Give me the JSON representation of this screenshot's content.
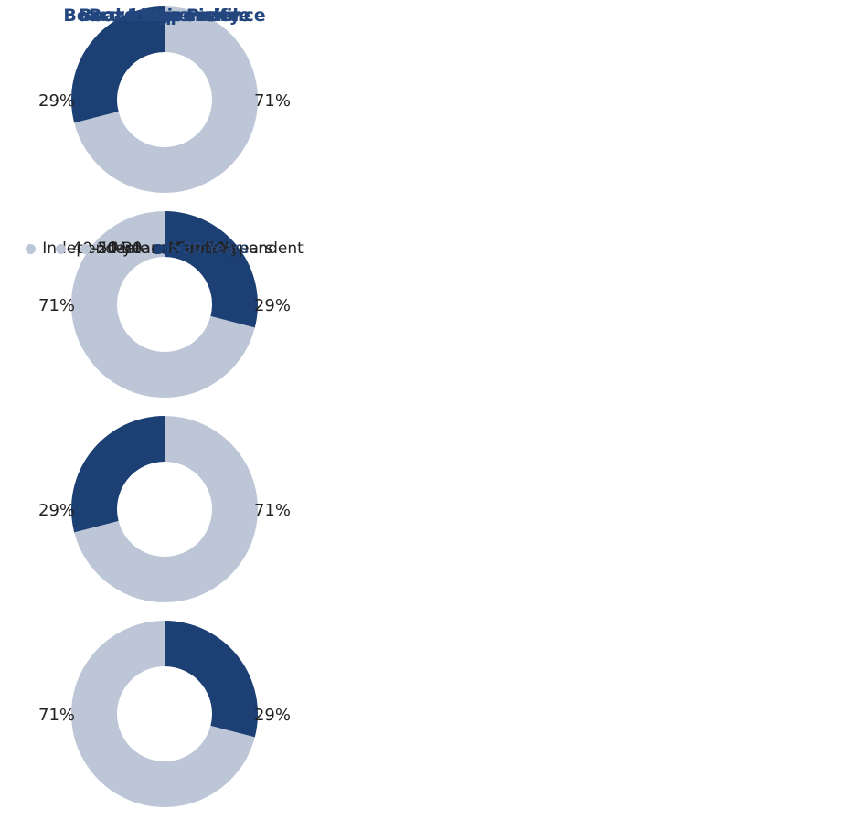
{
  "chart_data": [
    {
      "type": "donut",
      "title": "Board Diversity",
      "categories": [
        "Male",
        "Female"
      ],
      "values": [
        71,
        29
      ],
      "value_labels": [
        "71%",
        "29%"
      ],
      "colors": [
        "#bcc6d6",
        "#1c3f74"
      ],
      "clockwise": true
    },
    {
      "type": "donut",
      "title": "Board Independence",
      "categories": [
        "Independent",
        "Non-Independent"
      ],
      "values": [
        71,
        29
      ],
      "value_labels": [
        "71%",
        "29%"
      ],
      "colors": [
        "#bcc6d6",
        "#1c3f74"
      ],
      "clockwise": false
    },
    {
      "type": "donut",
      "title": "Board Age Profile",
      "categories": [
        "40-50 years",
        ">50 years"
      ],
      "values": [
        71,
        29
      ],
      "value_labels": [
        "71%",
        "29%"
      ],
      "colors": [
        "#bcc6d6",
        "#1c3f74"
      ],
      "clockwise": true
    },
    {
      "type": "donut",
      "title": "Board Experience",
      "categories": [
        "20-30",
        ">30 Years"
      ],
      "values": [
        71,
        29
      ],
      "value_labels": [
        "71%",
        "29%"
      ],
      "colors": [
        "#bcc6d6",
        "#1c3f74"
      ],
      "clockwise": false,
      "legend_text_colors": [
        "#222222",
        "#2a4a80"
      ]
    }
  ]
}
